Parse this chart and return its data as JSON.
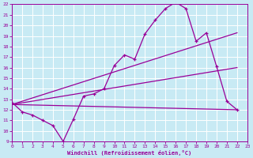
{
  "xlabel": "Windchill (Refroidissement éolien,°C)",
  "xlim": [
    0,
    23
  ],
  "ylim": [
    9,
    22
  ],
  "yticks": [
    9,
    10,
    11,
    12,
    13,
    14,
    15,
    16,
    17,
    18,
    19,
    20,
    21,
    22
  ],
  "xticks": [
    0,
    1,
    2,
    3,
    4,
    5,
    6,
    7,
    8,
    9,
    10,
    11,
    12,
    13,
    14,
    15,
    16,
    17,
    18,
    19,
    20,
    21,
    22,
    23
  ],
  "background_color": "#c8eaf4",
  "line_color": "#990099",
  "grid_color": "#ffffff",
  "series": [
    {
      "x": [
        0,
        1,
        2,
        3,
        4,
        5,
        6,
        7,
        8,
        9,
        10,
        11,
        12,
        13,
        14,
        15,
        16,
        17,
        18,
        19,
        20,
        21,
        22
      ],
      "y": [
        12.7,
        11.8,
        11.5,
        11.0,
        10.5,
        9.0,
        11.1,
        13.3,
        13.5,
        14.0,
        16.2,
        17.2,
        16.8,
        19.2,
        20.5,
        21.6,
        22.2,
        21.6,
        18.5,
        19.3,
        16.1,
        12.8,
        12.0
      ],
      "marker": "+"
    },
    {
      "x": [
        0,
        22
      ],
      "y": [
        12.5,
        12.0
      ],
      "marker": null,
      "lw": 0.9
    },
    {
      "x": [
        0,
        22
      ],
      "y": [
        12.5,
        16.0
      ],
      "marker": null,
      "lw": 0.9
    },
    {
      "x": [
        0,
        22
      ],
      "y": [
        12.5,
        19.3
      ],
      "marker": null,
      "lw": 0.9
    }
  ]
}
